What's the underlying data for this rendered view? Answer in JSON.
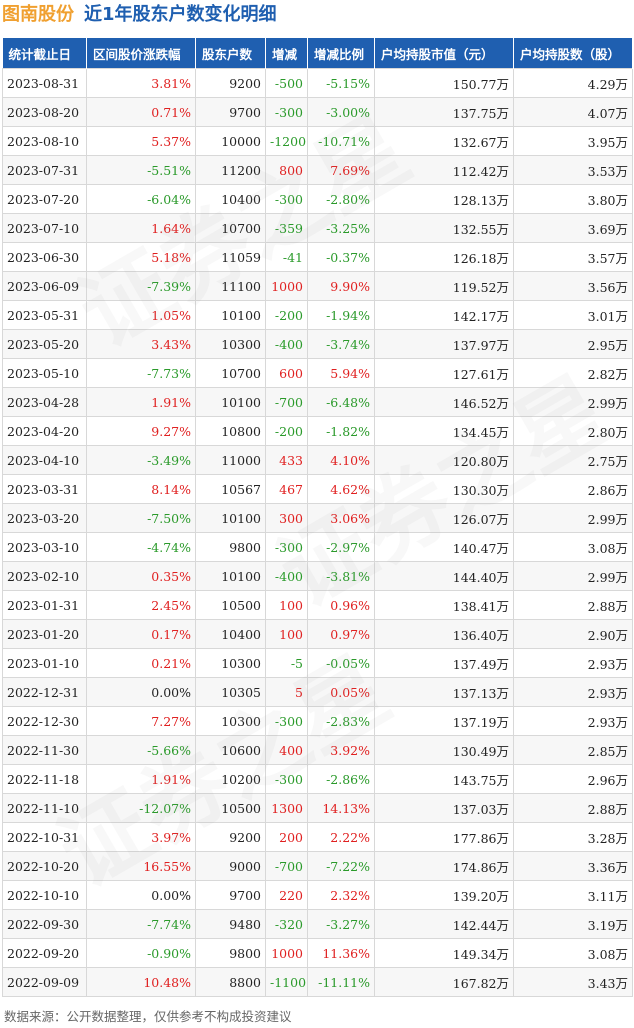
{
  "title": {
    "stock_name": "图南股份",
    "subtitle": "近1年股东户数变化明细"
  },
  "table": {
    "headers": [
      "统计截止日",
      "区间股价涨跌幅",
      "股东户数",
      "增减",
      "增减比例",
      "户均持股市值（元）",
      "户均持股数（股）"
    ],
    "rows": [
      [
        "2023-08-31",
        "3.81%",
        "9200",
        "-500",
        "-5.15%",
        "150.77万",
        "4.29万"
      ],
      [
        "2023-08-20",
        "0.71%",
        "9700",
        "-300",
        "-3.00%",
        "137.75万",
        "4.07万"
      ],
      [
        "2023-08-10",
        "5.37%",
        "10000",
        "-1200",
        "-10.71%",
        "132.67万",
        "3.95万"
      ],
      [
        "2023-07-31",
        "-5.51%",
        "11200",
        "800",
        "7.69%",
        "112.42万",
        "3.53万"
      ],
      [
        "2023-07-20",
        "-6.04%",
        "10400",
        "-300",
        "-2.80%",
        "128.13万",
        "3.80万"
      ],
      [
        "2023-07-10",
        "1.64%",
        "10700",
        "-359",
        "-3.25%",
        "132.55万",
        "3.69万"
      ],
      [
        "2023-06-30",
        "5.18%",
        "11059",
        "-41",
        "-0.37%",
        "126.18万",
        "3.57万"
      ],
      [
        "2023-06-09",
        "-7.39%",
        "11100",
        "1000",
        "9.90%",
        "119.52万",
        "3.56万"
      ],
      [
        "2023-05-31",
        "1.05%",
        "10100",
        "-200",
        "-1.94%",
        "142.17万",
        "3.01万"
      ],
      [
        "2023-05-20",
        "3.43%",
        "10300",
        "-400",
        "-3.74%",
        "137.97万",
        "2.95万"
      ],
      [
        "2023-05-10",
        "-7.73%",
        "10700",
        "600",
        "5.94%",
        "127.61万",
        "2.82万"
      ],
      [
        "2023-04-28",
        "1.91%",
        "10100",
        "-700",
        "-6.48%",
        "146.52万",
        "2.99万"
      ],
      [
        "2023-04-20",
        "9.27%",
        "10800",
        "-200",
        "-1.82%",
        "134.45万",
        "2.80万"
      ],
      [
        "2023-04-10",
        "-3.49%",
        "11000",
        "433",
        "4.10%",
        "120.80万",
        "2.75万"
      ],
      [
        "2023-03-31",
        "8.14%",
        "10567",
        "467",
        "4.62%",
        "130.30万",
        "2.86万"
      ],
      [
        "2023-03-20",
        "-7.50%",
        "10100",
        "300",
        "3.06%",
        "126.07万",
        "2.99万"
      ],
      [
        "2023-03-10",
        "-4.74%",
        "9800",
        "-300",
        "-2.97%",
        "140.47万",
        "3.08万"
      ],
      [
        "2023-02-10",
        "0.35%",
        "10100",
        "-400",
        "-3.81%",
        "144.40万",
        "2.99万"
      ],
      [
        "2023-01-31",
        "2.45%",
        "10500",
        "100",
        "0.96%",
        "138.41万",
        "2.88万"
      ],
      [
        "2023-01-20",
        "0.17%",
        "10400",
        "100",
        "0.97%",
        "136.40万",
        "2.90万"
      ],
      [
        "2023-01-10",
        "0.21%",
        "10300",
        "-5",
        "-0.05%",
        "137.49万",
        "2.93万"
      ],
      [
        "2022-12-31",
        "0.00%",
        "10305",
        "5",
        "0.05%",
        "137.13万",
        "2.93万"
      ],
      [
        "2022-12-30",
        "7.27%",
        "10300",
        "-300",
        "-2.83%",
        "137.19万",
        "2.93万"
      ],
      [
        "2022-11-30",
        "-5.66%",
        "10600",
        "400",
        "3.92%",
        "130.49万",
        "2.85万"
      ],
      [
        "2022-11-18",
        "1.91%",
        "10200",
        "-300",
        "-2.86%",
        "143.75万",
        "2.96万"
      ],
      [
        "2022-11-10",
        "-12.07%",
        "10500",
        "1300",
        "14.13%",
        "137.03万",
        "2.88万"
      ],
      [
        "2022-10-31",
        "3.97%",
        "9200",
        "200",
        "2.22%",
        "177.86万",
        "3.28万"
      ],
      [
        "2022-10-20",
        "16.55%",
        "9000",
        "-700",
        "-7.22%",
        "174.86万",
        "3.36万"
      ],
      [
        "2022-10-10",
        "0.00%",
        "9700",
        "220",
        "2.32%",
        "139.20万",
        "3.11万"
      ],
      [
        "2022-09-30",
        "-7.74%",
        "9480",
        "-320",
        "-3.27%",
        "142.44万",
        "3.19万"
      ],
      [
        "2022-09-20",
        "-0.90%",
        "9800",
        "1000",
        "11.36%",
        "149.34万",
        "3.08万"
      ],
      [
        "2022-09-09",
        "10.48%",
        "8800",
        "-1100",
        "-11.11%",
        "167.82万",
        "3.43万"
      ]
    ]
  },
  "watermark_text": "证券之星",
  "footer": {
    "text": "数据来源：公开数据整理，仅供参考不构成投资建议"
  },
  "colors": {
    "header_bg": "#1f5fb0",
    "stock_name": "#f0a030",
    "subtitle": "#1f5fb0",
    "up": "#e02020",
    "down": "#2a9a2a"
  }
}
